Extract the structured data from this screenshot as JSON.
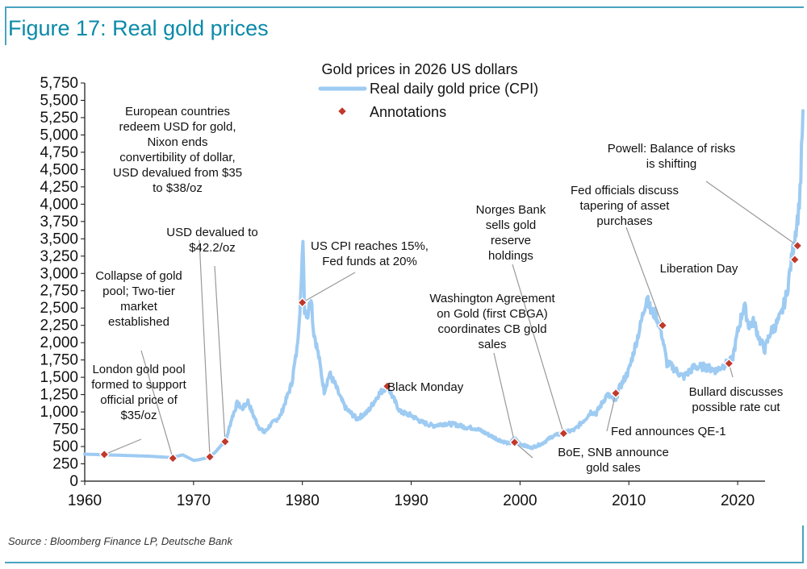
{
  "figure_title": "Figure 17: Real gold prices",
  "source": "Source : Bloomberg Finance LP, Deutsche Bank",
  "chart_data": {
    "type": "line",
    "title": "Gold prices in 2026 US dollars",
    "xlabel": "",
    "ylabel": "",
    "xlim": [
      1960,
      2026
    ],
    "ylim": [
      0,
      5750
    ],
    "x_ticks": [
      1960,
      1970,
      1980,
      1990,
      2000,
      2010,
      2020
    ],
    "y_ticks": [
      0,
      250,
      500,
      750,
      1000,
      1250,
      1500,
      1750,
      2000,
      2250,
      2500,
      2750,
      3000,
      3250,
      3500,
      3750,
      4000,
      4250,
      4500,
      4750,
      5000,
      5250,
      5500,
      5750
    ],
    "y_tick_labels": [
      "0",
      "250",
      "500",
      "750",
      "1,000",
      "1,250",
      "1,500",
      "1,750",
      "2,000",
      "2,250",
      "2,500",
      "2,750",
      "3,000",
      "3,250",
      "3,500",
      "3,750",
      "4,000",
      "4,250",
      "4,500",
      "4,750",
      "5,000",
      "5,250",
      "5,500",
      "5,750"
    ],
    "legend": [
      {
        "label": "Real daily gold price (CPI)",
        "color": "#9ecbf2",
        "kind": "line"
      },
      {
        "label": "Annotations",
        "color": "#c0392b",
        "kind": "diamond"
      }
    ],
    "series": [
      {
        "name": "Real daily gold price (CPI)",
        "color": "#9ecbf2",
        "x": [
          1960,
          1962,
          1964,
          1966,
          1968,
          1969,
          1970,
          1970.5,
          1971,
          1971.5,
          1972,
          1973,
          1973.5,
          1974,
          1974.5,
          1975,
          1975.5,
          1976,
          1976.5,
          1977,
          1978,
          1979,
          1979.5,
          1979.9,
          1980.05,
          1980.2,
          1980.5,
          1980.8,
          1981,
          1981.5,
          1982,
          1982.5,
          1983,
          1983.5,
          1984,
          1985,
          1986,
          1987,
          1987.8,
          1988.5,
          1989,
          1990,
          1991,
          1992,
          1993,
          1994,
          1995,
          1996,
          1997,
          1998,
          1999,
          1999.5,
          2000,
          2001,
          2002,
          2003,
          2004,
          2005,
          2006,
          2006.5,
          2007,
          2008,
          2008.8,
          2009,
          2010,
          2011,
          2011.7,
          2012,
          2012.5,
          2013,
          2013.5,
          2014,
          2015,
          2016,
          2017,
          2018,
          2019,
          2019.5,
          2020,
          2020.6,
          2021,
          2021.5,
          2022,
          2022.5,
          2023,
          2023.5,
          2024,
          2024.5,
          2025,
          2025.3,
          2025.6,
          2025.8,
          2026
        ],
        "values": [
          390,
          380,
          370,
          360,
          340,
          380,
          300,
          310,
          330,
          350,
          420,
          600,
          900,
          1120,
          1050,
          1150,
          950,
          780,
          700,
          800,
          950,
          1400,
          1900,
          2800,
          3550,
          2500,
          2400,
          2700,
          2200,
          1800,
          1300,
          1550,
          1400,
          1200,
          1050,
          900,
          1000,
          1250,
          1380,
          1150,
          1000,
          950,
          850,
          800,
          830,
          820,
          780,
          760,
          680,
          600,
          540,
          620,
          540,
          480,
          540,
          650,
          700,
          740,
          900,
          1000,
          980,
          1250,
          1150,
          1300,
          1600,
          2200,
          2700,
          2450,
          2400,
          2150,
          1700,
          1650,
          1500,
          1650,
          1650,
          1600,
          1700,
          1750,
          2150,
          2550,
          2250,
          2300,
          2050,
          1900,
          2150,
          2250,
          2400,
          2700,
          3250,
          3600,
          3900,
          4400,
          5350
        ]
      },
      {
        "name": "Annotations",
        "color": "#c0392b",
        "x": [
          1961.8,
          1968.1,
          1971.5,
          1972.9,
          1980,
          1987.8,
          1999.5,
          2004,
          2008.8,
          2013.1,
          2019.2,
          2025.25,
          2025.5
        ],
        "values": [
          385,
          330,
          350,
          570,
          2580,
          1370,
          560,
          690,
          1270,
          2250,
          1700,
          3200,
          3400
        ]
      }
    ],
    "annotations": [
      {
        "id": "london-gold-pool",
        "lines": [
          "London gold pool",
          "formed to support",
          "official price of",
          "$35/oz"
        ],
        "year": 1961.8,
        "value": 385
      },
      {
        "id": "collapse-gold-pool",
        "lines": [
          "Collapse of gold",
          "pool; Two-tier",
          "market",
          "established"
        ],
        "year": 1968.1,
        "value": 330
      },
      {
        "id": "nixon-ends",
        "lines": [
          "European countries",
          "redeem USD for gold,",
          "Nixon ends",
          "convertibility of dollar,",
          "USD devalued from $35",
          "to $38/oz"
        ],
        "year": 1971.5,
        "value": 350
      },
      {
        "id": "usd-devalued-42",
        "lines": [
          "USD devalued to",
          "$42.2/oz"
        ],
        "year": 1972.9,
        "value": 570
      },
      {
        "id": "us-cpi-15",
        "lines": [
          "US CPI reaches 15%,",
          "Fed funds at 20%"
        ],
        "year": 1980,
        "value": 2580
      },
      {
        "id": "black-monday",
        "lines": [
          "Black Monday"
        ],
        "year": 1987.8,
        "value": 1370
      },
      {
        "id": "washington-agreement",
        "lines": [
          "Washington Agreement",
          "on Gold (first CBGA)",
          "coordinates CB gold",
          "sales"
        ],
        "year": 1999.5,
        "value": 560
      },
      {
        "id": "boe-snb",
        "lines": [
          "BoE, SNB announce",
          "gold sales"
        ],
        "year": 1999.5,
        "value": 560
      },
      {
        "id": "norges-bank",
        "lines": [
          "Norges Bank",
          "sells gold",
          "reserve",
          "holdings"
        ],
        "year": 2004,
        "value": 690
      },
      {
        "id": "qe1",
        "lines": [
          "Fed announces QE-1"
        ],
        "year": 2008.8,
        "value": 1270
      },
      {
        "id": "tapering",
        "lines": [
          "Fed officials discuss",
          "tapering of asset",
          "purchases"
        ],
        "year": 2013.1,
        "value": 2250
      },
      {
        "id": "bullard",
        "lines": [
          "Bullard discusses",
          "possible rate cut"
        ],
        "year": 2019.2,
        "value": 1700
      },
      {
        "id": "liberation-day",
        "lines": [
          "Liberation Day"
        ],
        "year": 2025.25,
        "value": 3200
      },
      {
        "id": "powell",
        "lines": [
          "Powell: Balance of risks",
          "is shifting"
        ],
        "year": 2025.5,
        "value": 3400
      }
    ]
  }
}
